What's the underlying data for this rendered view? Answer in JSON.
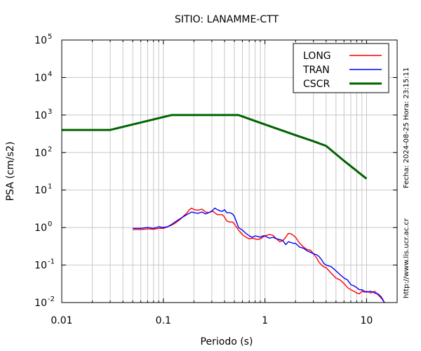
{
  "chart_data": {
    "type": "line",
    "title": "SITIO: LANAMME-CTT",
    "xlabel": "Periodo (s)",
    "ylabel": "PSA (cm/s2)",
    "x_scale": "log",
    "y_scale": "log",
    "xlim": [
      0.01,
      20
    ],
    "ylim": [
      0.01,
      100000
    ],
    "x_ticks": [
      {
        "value": 0.01,
        "label": "0.01"
      },
      {
        "value": 0.1,
        "label": "0.1"
      },
      {
        "value": 1,
        "label": "1"
      },
      {
        "value": 10,
        "label": "10"
      }
    ],
    "y_ticks": [
      {
        "value": 0.01,
        "base": "10",
        "exp": "-2"
      },
      {
        "value": 0.1,
        "base": "10",
        "exp": "-1"
      },
      {
        "value": 1,
        "base": "10",
        "exp": "0"
      },
      {
        "value": 10,
        "base": "10",
        "exp": "1"
      },
      {
        "value": 100,
        "base": "10",
        "exp": "2"
      },
      {
        "value": 1000,
        "base": "10",
        "exp": "3"
      },
      {
        "value": 10000,
        "base": "10",
        "exp": "4"
      },
      {
        "value": 100000,
        "base": "10",
        "exp": "5"
      }
    ],
    "grid": true,
    "legend_position": "top-right",
    "side_text_1": "Fecha: 2024-08-25  Hora: 23:15:11",
    "side_text_2": "http://www.lis.ucr.ac.cr",
    "series": [
      {
        "name": "LONG",
        "color": "#ff0000",
        "x": [
          0.05,
          0.06,
          0.07,
          0.08,
          0.09,
          0.1,
          0.11,
          0.12,
          0.13,
          0.14,
          0.15,
          0.16,
          0.17,
          0.18,
          0.19,
          0.2,
          0.22,
          0.24,
          0.26,
          0.28,
          0.3,
          0.32,
          0.34,
          0.36,
          0.38,
          0.4,
          0.42,
          0.45,
          0.48,
          0.5,
          0.55,
          0.6,
          0.65,
          0.7,
          0.75,
          0.8,
          0.85,
          0.9,
          0.95,
          1.0,
          1.1,
          1.2,
          1.3,
          1.4,
          1.5,
          1.6,
          1.7,
          1.8,
          1.9,
          2.0,
          2.2,
          2.4,
          2.6,
          2.8,
          3.0,
          3.2,
          3.4,
          3.6,
          3.8,
          4.0,
          4.5,
          5.0,
          5.5,
          6.0,
          6.5,
          7.0,
          7.5,
          8.0,
          8.5,
          9.0,
          9.5,
          10.0,
          11.0,
          12.0,
          13.0,
          14.0,
          15.0
        ],
        "y": [
          0.88,
          0.88,
          0.92,
          0.9,
          0.95,
          0.95,
          1.05,
          1.15,
          1.3,
          1.5,
          1.75,
          2.1,
          2.4,
          3.0,
          3.3,
          3.0,
          2.9,
          3.1,
          2.6,
          2.5,
          2.8,
          2.5,
          2.2,
          2.2,
          2.2,
          1.9,
          1.5,
          1.4,
          1.4,
          1.25,
          0.85,
          0.65,
          0.55,
          0.5,
          0.52,
          0.5,
          0.48,
          0.5,
          0.55,
          0.6,
          0.65,
          0.62,
          0.5,
          0.42,
          0.45,
          0.55,
          0.7,
          0.68,
          0.62,
          0.55,
          0.38,
          0.3,
          0.26,
          0.25,
          0.2,
          0.16,
          0.12,
          0.1,
          0.09,
          0.085,
          0.06,
          0.045,
          0.04,
          0.032,
          0.025,
          0.022,
          0.02,
          0.018,
          0.017,
          0.02,
          0.019,
          0.02,
          0.018,
          0.02,
          0.016,
          0.013,
          0.01
        ]
      },
      {
        "name": "TRAN",
        "color": "#0000ff",
        "x": [
          0.05,
          0.06,
          0.07,
          0.08,
          0.09,
          0.1,
          0.11,
          0.12,
          0.13,
          0.14,
          0.15,
          0.16,
          0.17,
          0.18,
          0.19,
          0.2,
          0.22,
          0.24,
          0.26,
          0.28,
          0.3,
          0.32,
          0.34,
          0.36,
          0.38,
          0.4,
          0.42,
          0.45,
          0.48,
          0.5,
          0.55,
          0.6,
          0.65,
          0.7,
          0.75,
          0.8,
          0.85,
          0.9,
          0.95,
          1.0,
          1.1,
          1.2,
          1.3,
          1.4,
          1.5,
          1.6,
          1.7,
          1.8,
          1.9,
          2.0,
          2.2,
          2.4,
          2.6,
          2.8,
          3.0,
          3.2,
          3.4,
          3.6,
          3.8,
          4.0,
          4.5,
          5.0,
          5.5,
          6.0,
          6.5,
          7.0,
          7.5,
          8.0,
          8.5,
          9.0,
          9.5,
          10.0,
          11.0,
          12.0,
          13.0,
          14.0,
          15.0
        ],
        "y": [
          0.95,
          0.95,
          1.0,
          0.95,
          1.05,
          1.0,
          1.05,
          1.2,
          1.4,
          1.6,
          1.8,
          2.0,
          2.2,
          2.4,
          2.6,
          2.5,
          2.4,
          2.6,
          2.3,
          2.5,
          2.7,
          3.3,
          3.0,
          2.8,
          2.7,
          3.0,
          2.5,
          2.5,
          2.3,
          2.0,
          1.0,
          0.85,
          0.7,
          0.6,
          0.55,
          0.6,
          0.58,
          0.55,
          0.6,
          0.6,
          0.52,
          0.55,
          0.5,
          0.48,
          0.45,
          0.35,
          0.42,
          0.4,
          0.38,
          0.38,
          0.3,
          0.28,
          0.24,
          0.22,
          0.2,
          0.19,
          0.17,
          0.14,
          0.11,
          0.1,
          0.09,
          0.07,
          0.055,
          0.045,
          0.04,
          0.03,
          0.028,
          0.025,
          0.022,
          0.022,
          0.02,
          0.019,
          0.02,
          0.018,
          0.017,
          0.014,
          0.01
        ]
      },
      {
        "name": "CSCR",
        "color": "#006400",
        "x": [
          0.01,
          0.03,
          0.12,
          0.55,
          1.0,
          2.0,
          3.0,
          4.0,
          6.0,
          10.0
        ],
        "y": [
          400,
          400,
          1000,
          1000,
          560,
          290,
          200,
          150,
          60,
          20
        ]
      }
    ]
  }
}
